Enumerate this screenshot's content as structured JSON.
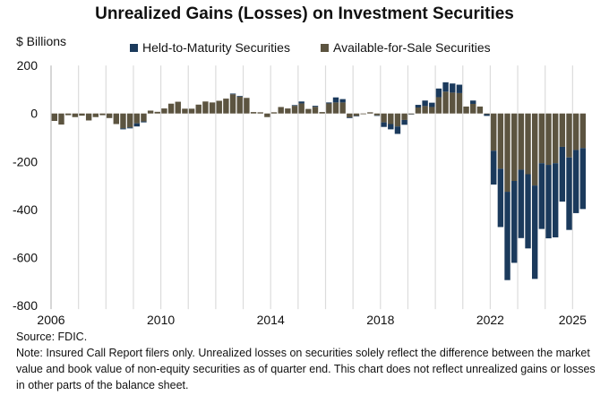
{
  "chart_data": {
    "type": "bar",
    "stacked": true,
    "title": "Unrealized Gains (Losses) on Investment Securities",
    "ylabel": "$ Billions",
    "xlabel": "",
    "ylim": [
      -800,
      200
    ],
    "yticks": [
      200,
      0,
      -200,
      -400,
      -600,
      -800
    ],
    "xtick_labels": [
      "2006",
      "2010",
      "2014",
      "2018",
      "2022",
      "2025"
    ],
    "grid": "vertical lines at each year",
    "legend_position": "top",
    "x": [
      "2006Q1",
      "2006Q2",
      "2006Q3",
      "2006Q4",
      "2007Q1",
      "2007Q2",
      "2007Q3",
      "2007Q4",
      "2008Q1",
      "2008Q2",
      "2008Q3",
      "2008Q4",
      "2009Q1",
      "2009Q2",
      "2009Q3",
      "2009Q4",
      "2010Q1",
      "2010Q2",
      "2010Q3",
      "2010Q4",
      "2011Q1",
      "2011Q2",
      "2011Q3",
      "2011Q4",
      "2012Q1",
      "2012Q2",
      "2012Q3",
      "2012Q4",
      "2013Q1",
      "2013Q2",
      "2013Q3",
      "2013Q4",
      "2014Q1",
      "2014Q2",
      "2014Q3",
      "2014Q4",
      "2015Q1",
      "2015Q2",
      "2015Q3",
      "2015Q4",
      "2016Q1",
      "2016Q2",
      "2016Q3",
      "2016Q4",
      "2017Q1",
      "2017Q2",
      "2017Q3",
      "2017Q4",
      "2018Q1",
      "2018Q2",
      "2018Q3",
      "2018Q4",
      "2019Q1",
      "2019Q2",
      "2019Q3",
      "2019Q4",
      "2020Q1",
      "2020Q2",
      "2020Q3",
      "2020Q4",
      "2021Q1",
      "2021Q2",
      "2021Q3",
      "2021Q4",
      "2022Q1",
      "2022Q2",
      "2022Q3",
      "2022Q4",
      "2023Q1",
      "2023Q2",
      "2023Q3",
      "2023Q4",
      "2024Q1",
      "2024Q2",
      "2024Q3",
      "2024Q4",
      "2025Q1",
      "2025Q2"
    ],
    "series": [
      {
        "name": "Held-to-Maturity Securities",
        "color": "#1b3a5c",
        "values": [
          0,
          0,
          0,
          0,
          0,
          0,
          0,
          0,
          0,
          0,
          -4,
          -4,
          -13,
          -4,
          0,
          0,
          0,
          0,
          0,
          0,
          0,
          0,
          0,
          0,
          0,
          0,
          3,
          3,
          0,
          0,
          0,
          0,
          0,
          0,
          0,
          3,
          8,
          0,
          4,
          0,
          4,
          21,
          14,
          -3,
          -2,
          0,
          0,
          -2,
          -19,
          -22,
          -31,
          -20,
          -1,
          11,
          23,
          18,
          36,
          39,
          38,
          35,
          0,
          14,
          0,
          -7,
          -141,
          -243,
          -368,
          -341,
          -285,
          -309,
          -389,
          -274,
          -306,
          -309,
          -228,
          -302,
          -263,
          -254
        ]
      },
      {
        "name": "Available-for-Sale Securities",
        "color": "#5c5440",
        "values": [
          -31,
          -46,
          -7,
          -15,
          -9,
          -29,
          -15,
          -7,
          -19,
          -44,
          -62,
          -58,
          -41,
          -33,
          12,
          7,
          21,
          41,
          49,
          20,
          20,
          37,
          50,
          46,
          53,
          62,
          80,
          70,
          65,
          6,
          5,
          -15,
          5,
          27,
          21,
          32,
          42,
          19,
          28,
          6,
          42,
          46,
          46,
          -16,
          -10,
          0,
          5,
          -8,
          -37,
          -44,
          -54,
          -27,
          -3,
          25,
          31,
          27,
          68,
          91,
          87,
          85,
          29,
          40,
          29,
          -3,
          -155,
          -230,
          -326,
          -281,
          -234,
          -253,
          -300,
          -207,
          -214,
          -207,
          -139,
          -183,
          -152,
          -144
        ]
      }
    ]
  },
  "source": "Source: FDIC.",
  "note": "Note: Insured Call Report filers only. Unrealized losses on securities solely reflect the difference between the market value and book value of non-equity securities as of quarter end. This chart does not reflect unrealized gains or losses in other parts of the balance sheet."
}
